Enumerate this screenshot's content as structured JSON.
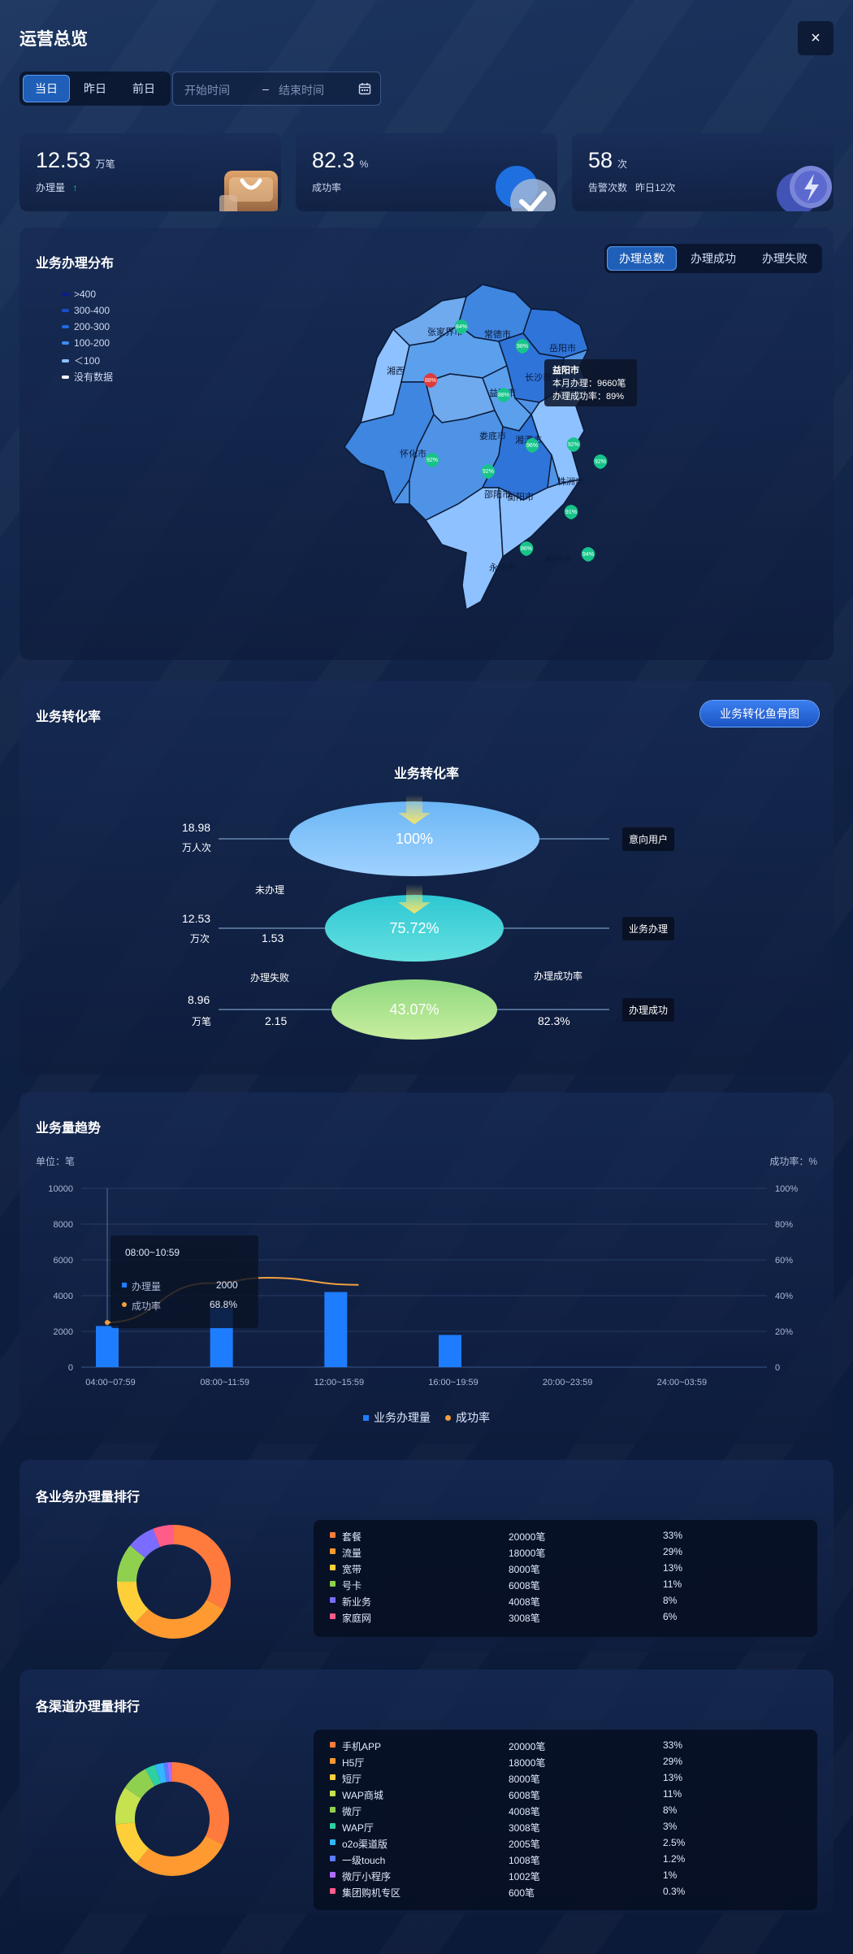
{
  "header": {
    "title": "运营总览",
    "close_icon": "close-icon",
    "close_glyph": "×"
  },
  "filters": {
    "day_tabs": [
      "当日",
      "昨日",
      "前日"
    ],
    "active_tab": "当日",
    "start_placeholder": "开始时间",
    "separator": "–",
    "end_placeholder": "结束时间",
    "calendar_icon": "calendar-icon"
  },
  "stats": [
    {
      "value": "12.53",
      "unit": "万笔",
      "label": "办理量",
      "trend": "↑",
      "icon": "shopping-bag-icon"
    },
    {
      "value": "82.3",
      "unit": "%",
      "label": "成功率",
      "icon": "check-badge-icon"
    },
    {
      "value": "58",
      "unit": "次",
      "label": "告警次数",
      "sub": "昨日12次",
      "icon": "lightning-icon"
    }
  ],
  "distribution": {
    "title": "业务办理分布",
    "tabs": [
      "办理总数",
      "办理成功",
      "办理失败"
    ],
    "active_tab": "办理总数",
    "legend": [
      {
        "label": ">400",
        "color": "#0a1e8a"
      },
      {
        "label": "300-400",
        "color": "#1a4dc8"
      },
      {
        "label": "200-300",
        "color": "#1f6be0"
      },
      {
        "label": "100-200",
        "color": "#3d8cf0"
      },
      {
        "label": "＜100",
        "color": "#8fc2ff"
      },
      {
        "label": "没有数据",
        "color": "#ffffff"
      }
    ],
    "cities": [
      {
        "name": "张家界市"
      },
      {
        "name": "常德市"
      },
      {
        "name": "岳阳市"
      },
      {
        "name": "湘西"
      },
      {
        "name": "益阳市"
      },
      {
        "name": "长沙市"
      },
      {
        "name": "怀化市"
      },
      {
        "name": "娄底市"
      },
      {
        "name": "湘潭市"
      },
      {
        "name": "株洲市"
      },
      {
        "name": "邵阳市"
      },
      {
        "name": "衡阳市"
      },
      {
        "name": "永州市"
      },
      {
        "name": "郴州市"
      }
    ],
    "pins": [
      "84%",
      "98%",
      "88%",
      "88%",
      "92%",
      "92%",
      "96%",
      "92%",
      "92%",
      "91%",
      "86%",
      "94%"
    ],
    "tooltip": {
      "city": "益阳市",
      "line1": "本月办理：9660笔",
      "line2": "办理成功率：89%"
    }
  },
  "conversion": {
    "title": "业务转化率",
    "button": "业务转化鱼骨图",
    "chart_title": "业务转化率",
    "stages": [
      {
        "left_value": "18.98",
        "left_unit": "万人次",
        "pct": "100%",
        "tag": "意向用户"
      },
      {
        "left_value": "12.53",
        "left_unit": "万次",
        "pct": "75.72%",
        "tag": "业务办理",
        "side_label": "未办理",
        "side_value": "1.53"
      },
      {
        "left_value": "8.96",
        "left_unit": "万笔",
        "pct": "43.07%",
        "tag": "办理成功",
        "side_label": "办理失败",
        "side_value": "2.15",
        "right_label": "办理成功率",
        "right_value": "82.3%"
      }
    ]
  },
  "trend": {
    "title": "业务量趋势",
    "unit_left": "单位：笔",
    "unit_right": "成功率：%",
    "tooltip": {
      "time": "08:00~10:59",
      "row1_label": "办理量",
      "row1_value": "2000",
      "row2_label": "成功率",
      "row2_value": "68.8%"
    },
    "legend": [
      "业务办理量",
      "成功率"
    ]
  },
  "chart_data": {
    "type": "bar",
    "categories": [
      "04:00~07:59",
      "08:00~11:59",
      "12:00~15:59",
      "16:00~19:59",
      "20:00~23:59",
      "24:00~03:59"
    ],
    "series": [
      {
        "name": "业务办理量",
        "type": "bar",
        "values": [
          2300,
          3300,
          4200,
          1800,
          0,
          0
        ],
        "color": "#1e7dff"
      },
      {
        "name": "成功率",
        "type": "line",
        "values": [
          25,
          47,
          50,
          46
        ],
        "x": [
          0,
          0.9,
          1.4,
          2.2
        ],
        "color": "#f0a040"
      }
    ],
    "ylim": [
      0,
      10000
    ],
    "y_ticks": [
      "0",
      "2000",
      "4000",
      "6000",
      "8000",
      "10000"
    ],
    "y2lim": [
      0,
      100
    ],
    "y2_ticks": [
      "0",
      "20%",
      "40%",
      "60%",
      "80%",
      "100%"
    ],
    "grid": true,
    "legend_position": "bottom"
  },
  "business_ranking": {
    "title": "各业务办理量排行",
    "items": [
      {
        "name": "套餐",
        "count": "20000笔",
        "pct": "33%",
        "color": "#ff7a3d",
        "share": 33
      },
      {
        "name": "流量",
        "count": "18000笔",
        "pct": "29%",
        "color": "#ff9a30",
        "share": 29
      },
      {
        "name": "宽带",
        "count": "8000笔",
        "pct": "13%",
        "color": "#ffcf3a",
        "share": 13
      },
      {
        "name": "号卡",
        "count": "6008笔",
        "pct": "11%",
        "color": "#8fd14f",
        "share": 11
      },
      {
        "name": "新业务",
        "count": "4008笔",
        "pct": "8%",
        "color": "#7a6cff",
        "share": 8
      },
      {
        "name": "家庭网",
        "count": "3008笔",
        "pct": "6%",
        "color": "#ff5c8a",
        "share": 6
      }
    ]
  },
  "channel_ranking": {
    "title": "各渠道办理量排行",
    "items": [
      {
        "name": "手机APP",
        "count": "20000笔",
        "pct": "33%",
        "color": "#ff7a3d",
        "share": 33
      },
      {
        "name": "H5厅",
        "count": "18000笔",
        "pct": "29%",
        "color": "#ff9a30",
        "share": 29
      },
      {
        "name": "短厅",
        "count": "8000笔",
        "pct": "13%",
        "color": "#ffcf3a",
        "share": 13
      },
      {
        "name": "WAP商城",
        "count": "6008笔",
        "pct": "11%",
        "color": "#c6e24f",
        "share": 11
      },
      {
        "name": "微厅",
        "count": "4008笔",
        "pct": "8%",
        "color": "#8fd14f",
        "share": 8
      },
      {
        "name": "WAP厅",
        "count": "3008笔",
        "pct": "3%",
        "color": "#2ed0a0",
        "share": 3
      },
      {
        "name": "o2o渠道版",
        "count": "2005笔",
        "pct": "2.5%",
        "color": "#33b6ff",
        "share": 2.5
      },
      {
        "name": "一级touch",
        "count": "1008笔",
        "pct": "1.2%",
        "color": "#5b7dff",
        "share": 1.2
      },
      {
        "name": "微厅小程序",
        "count": "1002笔",
        "pct": "1%",
        "color": "#b06cff",
        "share": 1
      },
      {
        "name": "集团购机专区",
        "count": "600笔",
        "pct": "0.3%",
        "color": "#ff5c8a",
        "share": 0.3
      }
    ]
  }
}
